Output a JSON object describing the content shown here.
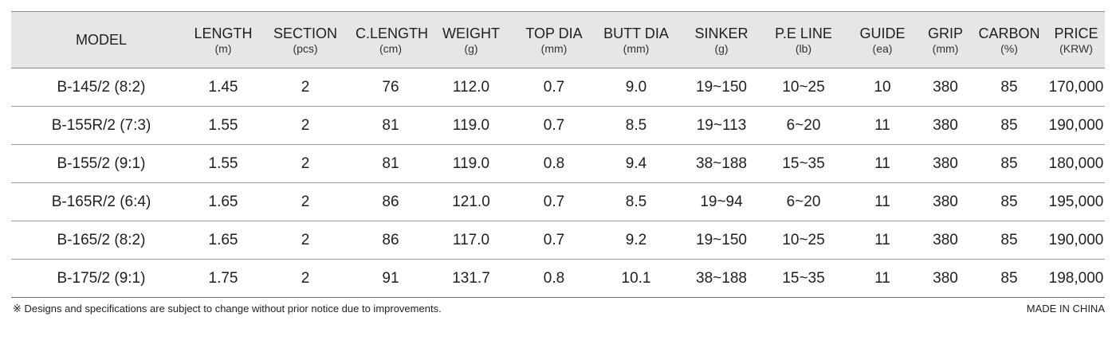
{
  "table": {
    "headers": [
      {
        "label": "MODEL",
        "unit": ""
      },
      {
        "label": "LENGTH",
        "unit": "(m)"
      },
      {
        "label": "SECTION",
        "unit": "(pcs)"
      },
      {
        "label": "C.LENGTH",
        "unit": "(cm)"
      },
      {
        "label": "WEIGHT",
        "unit": "(g)"
      },
      {
        "label": "TOP DIA",
        "unit": "(mm)"
      },
      {
        "label": "BUTT DIA",
        "unit": "(mm)"
      },
      {
        "label": "SINKER",
        "unit": "(g)"
      },
      {
        "label": "P.E LINE",
        "unit": "(lb)"
      },
      {
        "label": "GUIDE",
        "unit": "(ea)"
      },
      {
        "label": "GRIP",
        "unit": "(mm)"
      },
      {
        "label": "CARBON",
        "unit": "(%)"
      },
      {
        "label": "PRICE",
        "unit": "(KRW)"
      }
    ],
    "rows": [
      [
        "B-145/2 (8:2)",
        "1.45",
        "2",
        "76",
        "112.0",
        "0.7",
        "9.0",
        "19~150",
        "10~25",
        "10",
        "380",
        "85",
        "170,000"
      ],
      [
        "B-155R/2 (7:3)",
        "1.55",
        "2",
        "81",
        "119.0",
        "0.7",
        "8.5",
        "19~113",
        "6~20",
        "11",
        "380",
        "85",
        "190,000"
      ],
      [
        "B-155/2 (9:1)",
        "1.55",
        "2",
        "81",
        "119.0",
        "0.8",
        "9.4",
        "38~188",
        "15~35",
        "11",
        "380",
        "85",
        "180,000"
      ],
      [
        "B-165R/2 (6:4)",
        "1.65",
        "2",
        "86",
        "121.0",
        "0.7",
        "8.5",
        "19~94",
        "6~20",
        "11",
        "380",
        "85",
        "195,000"
      ],
      [
        "B-165/2 (8:2)",
        "1.65",
        "2",
        "86",
        "117.0",
        "0.7",
        "9.2",
        "19~150",
        "10~25",
        "11",
        "380",
        "85",
        "190,000"
      ],
      [
        "B-175/2 (9:1)",
        "1.75",
        "2",
        "91",
        "131.7",
        "0.8",
        "10.1",
        "38~188",
        "15~35",
        "11",
        "380",
        "85",
        "198,000"
      ]
    ]
  },
  "footer": {
    "note": "※ Designs and specifications are subject to change without prior notice due to improvements.",
    "origin": "MADE IN CHINA"
  },
  "colors": {
    "header_bg": "#e6e6e6",
    "rule": "#9a9a9a",
    "text": "#1f1f1f"
  }
}
